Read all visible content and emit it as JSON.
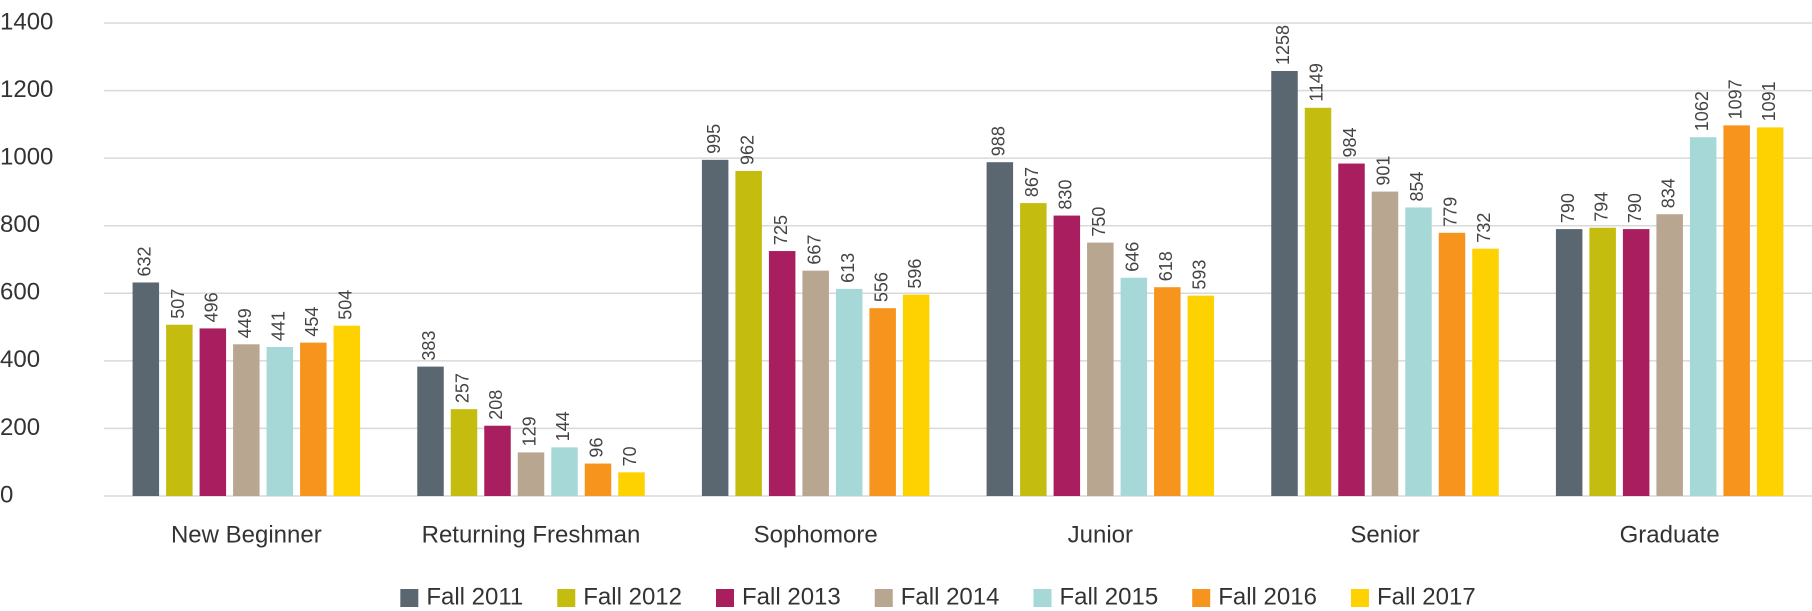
{
  "chart_data": {
    "type": "bar",
    "categories": [
      "New Beginner",
      "Returning Freshman",
      "Sophomore",
      "Junior",
      "Senior",
      "Graduate"
    ],
    "series": [
      {
        "name": "Fall 2011",
        "color": "#5b6770",
        "values": [
          632,
          383,
          995,
          988,
          1258,
          790
        ]
      },
      {
        "name": "Fall 2012",
        "color": "#c4bd10",
        "values": [
          507,
          257,
          962,
          867,
          1149,
          794
        ]
      },
      {
        "name": "Fall 2013",
        "color": "#a81e5e",
        "values": [
          496,
          208,
          725,
          830,
          984,
          790
        ]
      },
      {
        "name": "Fall 2014",
        "color": "#b9a690",
        "values": [
          449,
          129,
          667,
          750,
          901,
          834
        ]
      },
      {
        "name": "Fall 2015",
        "color": "#a6d8d8",
        "values": [
          441,
          144,
          613,
          646,
          854,
          1062
        ]
      },
      {
        "name": "Fall 2016",
        "color": "#f7941e",
        "values": [
          454,
          96,
          556,
          618,
          779,
          1097
        ]
      },
      {
        "name": "Fall 2017",
        "color": "#fed100",
        "values": [
          504,
          70,
          596,
          593,
          732,
          1091
        ]
      }
    ],
    "ylim": [
      0,
      1400
    ],
    "yticks": [
      0,
      200,
      400,
      600,
      800,
      1000,
      1200,
      1400
    ],
    "grid": true,
    "legend": "bottom"
  }
}
